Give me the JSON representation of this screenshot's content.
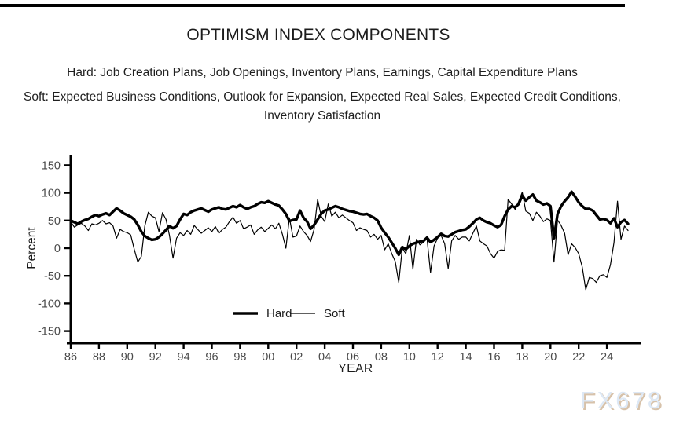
{
  "header": {
    "title": "OPTIMISM INDEX COMPONENTS",
    "hard_label": "Hard:",
    "hard_list": "Job Creation Plans, Job Openings, Inventory Plans, Earnings, Capital Expenditure Plans",
    "soft_label": "Soft:",
    "soft_list": "Expected Business Conditions, Outlook for Expansion, Expected Real Sales, Expected Credit Conditions, Inventory Satisfaction"
  },
  "watermark": {
    "text": "FX678",
    "fill_color": "#dde8f5",
    "shadow_color": "#d7c2aa"
  },
  "chart_data": {
    "type": "line",
    "title": "OPTIMISM INDEX COMPONENTS",
    "xlabel": "YEAR",
    "ylabel": "Percent",
    "grid": false,
    "legend_position": "inside-bottom-center",
    "axis_color": "#000000",
    "tick_label_color": "#4a4a4a",
    "x_start": 1986.0,
    "x_step": 0.25,
    "x_end": 2025.5,
    "xlim": [
      1985.7,
      2026.4
    ],
    "ylim": [
      -172,
      168
    ],
    "y_ticks": [
      150,
      100,
      50,
      0,
      -50,
      -100,
      -150
    ],
    "x_tick_years": [
      1986,
      1988,
      1990,
      1992,
      1994,
      1996,
      1998,
      2000,
      2002,
      2004,
      2006,
      2008,
      2010,
      2012,
      2014,
      2016,
      2018,
      2020,
      2022,
      2024
    ],
    "x_tick_labels": [
      "86",
      "88",
      "90",
      "92",
      "94",
      "96",
      "98",
      "00",
      "02",
      "04",
      "06",
      "08",
      "10",
      "12",
      "14",
      "16",
      "18",
      "20",
      "22",
      "24"
    ],
    "series": [
      {
        "name": "Hard",
        "color": "#000000",
        "line_style": "thick",
        "values": [
          50,
          47,
          44,
          48,
          51,
          53,
          57,
          60,
          58,
          61,
          63,
          60,
          66,
          72,
          68,
          63,
          60,
          57,
          52,
          42,
          30,
          22,
          18,
          15,
          16,
          20,
          26,
          33,
          40,
          36,
          40,
          52,
          62,
          60,
          65,
          68,
          70,
          72,
          69,
          66,
          70,
          72,
          74,
          71,
          70,
          73,
          76,
          74,
          78,
          74,
          71,
          74,
          76,
          80,
          83,
          82,
          85,
          82,
          79,
          77,
          70,
          62,
          49,
          51,
          52,
          68,
          55,
          48,
          35,
          42,
          52,
          62,
          68,
          70,
          73,
          76,
          74,
          71,
          69,
          67,
          66,
          64,
          62,
          61,
          62,
          58,
          55,
          50,
          37,
          28,
          20,
          10,
          0,
          -12,
          2,
          -2,
          4,
          8,
          10,
          12,
          13,
          19,
          11,
          15,
          20,
          26,
          22,
          21,
          25,
          29,
          31,
          33,
          34,
          39,
          45,
          52,
          55,
          50,
          47,
          45,
          41,
          38,
          42,
          58,
          70,
          76,
          74,
          80,
          95,
          86,
          92,
          97,
          86,
          83,
          79,
          81,
          76,
          18,
          62,
          76,
          85,
          92,
          102,
          93,
          83,
          76,
          71,
          71,
          68,
          60,
          52,
          53,
          51,
          45,
          54,
          38,
          47,
          51,
          44
        ]
      },
      {
        "name": "Soft",
        "color": "#000000",
        "line_style": "thin",
        "values": [
          48,
          38,
          42,
          45,
          40,
          32,
          44,
          42,
          45,
          50,
          44,
          46,
          40,
          18,
          34,
          30,
          28,
          24,
          -2,
          -25,
          -15,
          40,
          65,
          58,
          55,
          30,
          64,
          52,
          23,
          -18,
          18,
          28,
          23,
          32,
          25,
          41,
          34,
          27,
          32,
          37,
          30,
          39,
          27,
          34,
          38,
          48,
          56,
          45,
          50,
          35,
          38,
          42,
          25,
          33,
          38,
          30,
          36,
          42,
          35,
          45,
          25,
          0,
          55,
          20,
          22,
          40,
          30,
          23,
          12,
          34,
          88,
          58,
          48,
          80,
          58,
          65,
          55,
          60,
          55,
          50,
          46,
          32,
          37,
          34,
          32,
          20,
          25,
          16,
          23,
          -3,
          8,
          -10,
          -24,
          -62,
          0,
          -10,
          23,
          -38,
          16,
          6,
          11,
          18,
          -44,
          4,
          18,
          23,
          8,
          -37,
          13,
          23,
          16,
          20,
          20,
          13,
          27,
          40,
          13,
          8,
          4,
          -10,
          -18,
          -6,
          -3,
          -4,
          88,
          80,
          70,
          85,
          101,
          67,
          63,
          50,
          65,
          58,
          48,
          53,
          50,
          -25,
          51,
          41,
          27,
          -12,
          8,
          1,
          -10,
          -34,
          -75,
          -53,
          -55,
          -62,
          -50,
          -48,
          -53,
          -30,
          10,
          85,
          16,
          40,
          32
        ]
      }
    ]
  }
}
